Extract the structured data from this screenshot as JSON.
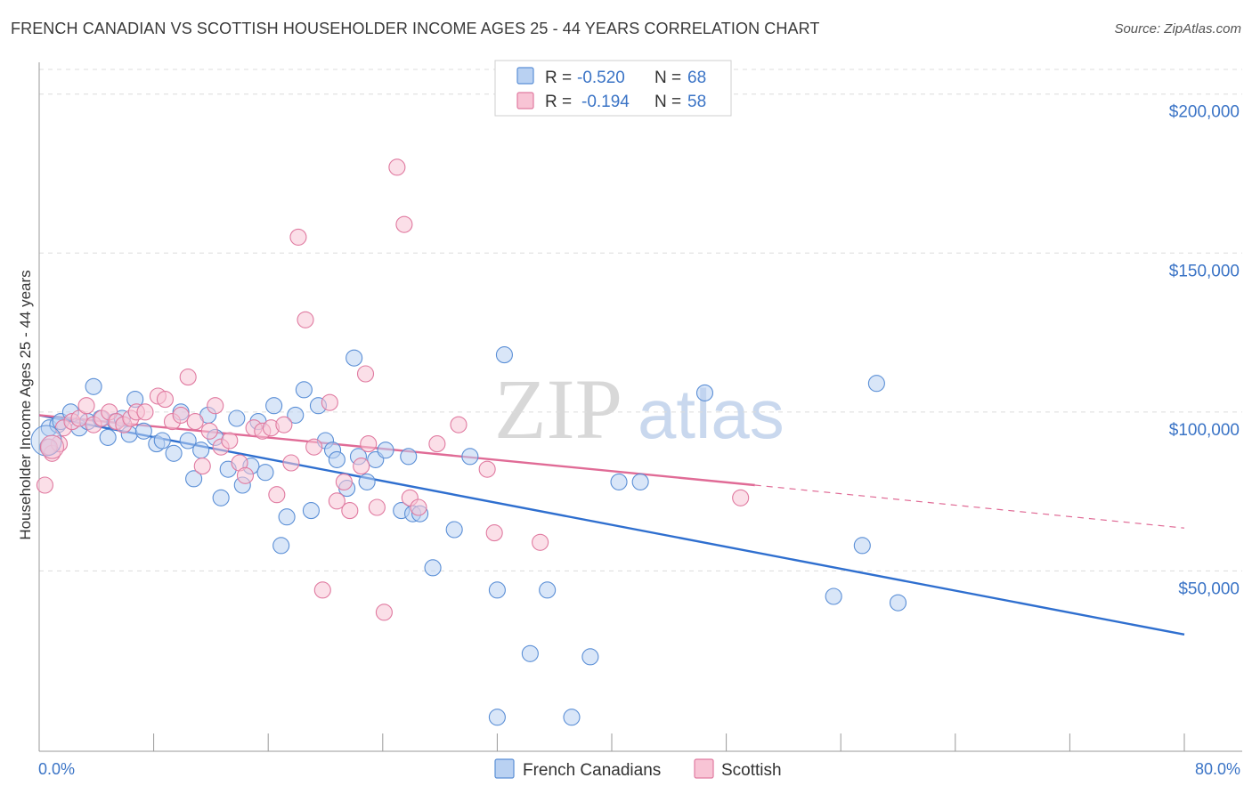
{
  "header": {
    "title": "FRENCH CANADIAN VS SCOTTISH HOUSEHOLDER INCOME AGES 25 - 44 YEARS CORRELATION CHART",
    "source": "Source: ZipAtlas.com"
  },
  "watermark": {
    "zip": "ZIP",
    "atlas": "atlas"
  },
  "legend_top": {
    "rows": [
      {
        "r_label": "R =",
        "r_value": "-0.520",
        "n_label": "N =",
        "n_value": "68",
        "color": "#5b8fd6",
        "fill": "#b9d1f2"
      },
      {
        "r_label": "R =",
        "r_value": "-0.194",
        "n_label": "N =",
        "n_value": "58",
        "color": "#e07aa0",
        "fill": "#f8c4d5"
      }
    ]
  },
  "legend_bottom": {
    "items": [
      {
        "label": "French Canadians",
        "color": "#5b8fd6",
        "fill": "#b9d1f2"
      },
      {
        "label": "Scottish",
        "color": "#e07aa0",
        "fill": "#f8c4d5"
      }
    ]
  },
  "chart_data": {
    "type": "scatter",
    "xlabel": "",
    "ylabel": "Householder Income Ages 25 - 44 years",
    "xlim": [
      0,
      80
    ],
    "ylim": [
      0,
      210000
    ],
    "x_tick_labels": [
      "0.0%",
      "80.0%"
    ],
    "y_ticks": [
      50000,
      100000,
      150000,
      200000
    ],
    "y_tick_labels": [
      "$50,000",
      "$100,000",
      "$150,000",
      "$200,000"
    ],
    "grid": true,
    "series": [
      {
        "name": "French Canadians",
        "color": "#5b8fd6",
        "fill": "#b9d1f2",
        "points": [
          [
            0.7,
            95000
          ],
          [
            1.3,
            96000
          ],
          [
            1.5,
            97000
          ],
          [
            2.2,
            100000
          ],
          [
            2.8,
            95000
          ],
          [
            3.4,
            97000
          ],
          [
            3.8,
            108000
          ],
          [
            4.3,
            98000
          ],
          [
            4.8,
            92000
          ],
          [
            5.3,
            97000
          ],
          [
            5.8,
            98000
          ],
          [
            6.3,
            93000
          ],
          [
            6.7,
            104000
          ],
          [
            7.3,
            94000
          ],
          [
            8.2,
            90000
          ],
          [
            8.6,
            91000
          ],
          [
            9.4,
            87000
          ],
          [
            9.9,
            100000
          ],
          [
            10.4,
            91000
          ],
          [
            10.8,
            79000
          ],
          [
            11.3,
            88000
          ],
          [
            11.8,
            99000
          ],
          [
            12.3,
            92000
          ],
          [
            12.7,
            73000
          ],
          [
            13.2,
            82000
          ],
          [
            13.8,
            98000
          ],
          [
            14.2,
            77000
          ],
          [
            14.8,
            83000
          ],
          [
            15.3,
            97000
          ],
          [
            15.8,
            81000
          ],
          [
            16.4,
            102000
          ],
          [
            16.9,
            58000
          ],
          [
            17.3,
            67000
          ],
          [
            17.9,
            99000
          ],
          [
            18.5,
            107000
          ],
          [
            19.0,
            69000
          ],
          [
            19.5,
            102000
          ],
          [
            20.0,
            91000
          ],
          [
            20.5,
            88000
          ],
          [
            20.8,
            85000
          ],
          [
            21.5,
            76000
          ],
          [
            22.0,
            117000
          ],
          [
            22.3,
            86000
          ],
          [
            22.9,
            78000
          ],
          [
            23.5,
            85000
          ],
          [
            24.2,
            88000
          ],
          [
            25.3,
            69000
          ],
          [
            25.8,
            86000
          ],
          [
            26.1,
            68000
          ],
          [
            27.5,
            51000
          ],
          [
            29.0,
            63000
          ],
          [
            30.1,
            86000
          ],
          [
            32.0,
            44000
          ],
          [
            32.5,
            118000
          ],
          [
            34.3,
            24000
          ],
          [
            35.5,
            44000
          ],
          [
            38.5,
            23000
          ],
          [
            40.5,
            78000
          ],
          [
            42.0,
            78000
          ],
          [
            46.5,
            106000
          ],
          [
            55.5,
            42000
          ],
          [
            57.5,
            58000
          ],
          [
            58.5,
            109000
          ],
          [
            60.0,
            40000
          ],
          [
            32.0,
            4000
          ],
          [
            37.2,
            4000
          ],
          [
            0.6,
            89000
          ],
          [
            26.6,
            68000
          ]
        ]
      },
      {
        "name": "Scottish",
        "color": "#e07aa0",
        "fill": "#f8c4d5",
        "points": [
          [
            0.4,
            77000
          ],
          [
            0.9,
            87000
          ],
          [
            1.4,
            90000
          ],
          [
            1.7,
            95000
          ],
          [
            2.3,
            97000
          ],
          [
            2.8,
            98000
          ],
          [
            3.3,
            102000
          ],
          [
            3.8,
            96000
          ],
          [
            4.4,
            98000
          ],
          [
            4.9,
            100000
          ],
          [
            5.4,
            97000
          ],
          [
            5.9,
            96000
          ],
          [
            6.4,
            98000
          ],
          [
            6.8,
            100000
          ],
          [
            7.4,
            100000
          ],
          [
            8.3,
            105000
          ],
          [
            8.8,
            104000
          ],
          [
            9.3,
            97000
          ],
          [
            9.9,
            99000
          ],
          [
            10.4,
            111000
          ],
          [
            10.9,
            97000
          ],
          [
            11.4,
            83000
          ],
          [
            11.9,
            94000
          ],
          [
            12.3,
            102000
          ],
          [
            12.7,
            89000
          ],
          [
            13.3,
            91000
          ],
          [
            14.0,
            84000
          ],
          [
            14.4,
            80000
          ],
          [
            15.0,
            95000
          ],
          [
            15.6,
            94000
          ],
          [
            16.2,
            95000
          ],
          [
            16.6,
            74000
          ],
          [
            17.1,
            96000
          ],
          [
            17.6,
            84000
          ],
          [
            18.1,
            155000
          ],
          [
            18.6,
            129000
          ],
          [
            19.2,
            89000
          ],
          [
            19.8,
            44000
          ],
          [
            20.3,
            103000
          ],
          [
            20.8,
            72000
          ],
          [
            21.3,
            78000
          ],
          [
            21.7,
            69000
          ],
          [
            22.5,
            83000
          ],
          [
            23.0,
            90000
          ],
          [
            22.8,
            112000
          ],
          [
            23.6,
            70000
          ],
          [
            24.1,
            37000
          ],
          [
            25.0,
            177000
          ],
          [
            25.5,
            159000
          ],
          [
            25.9,
            73000
          ],
          [
            26.5,
            70000
          ],
          [
            27.8,
            90000
          ],
          [
            29.3,
            96000
          ],
          [
            31.3,
            82000
          ],
          [
            31.8,
            62000
          ],
          [
            35.0,
            59000
          ],
          [
            49.0,
            73000
          ],
          [
            0.7,
            89000
          ]
        ]
      }
    ],
    "trendlines": [
      {
        "series": "French Canadians",
        "x": [
          0,
          80
        ],
        "y": [
          99000,
          30000
        ],
        "style": "solid"
      },
      {
        "series": "Scottish",
        "x": [
          0,
          50
        ],
        "y": [
          99000,
          77000
        ],
        "style": "solid"
      },
      {
        "series": "Scottish",
        "x": [
          50,
          80
        ],
        "y": [
          77000,
          63500
        ],
        "style": "dashed"
      }
    ]
  }
}
